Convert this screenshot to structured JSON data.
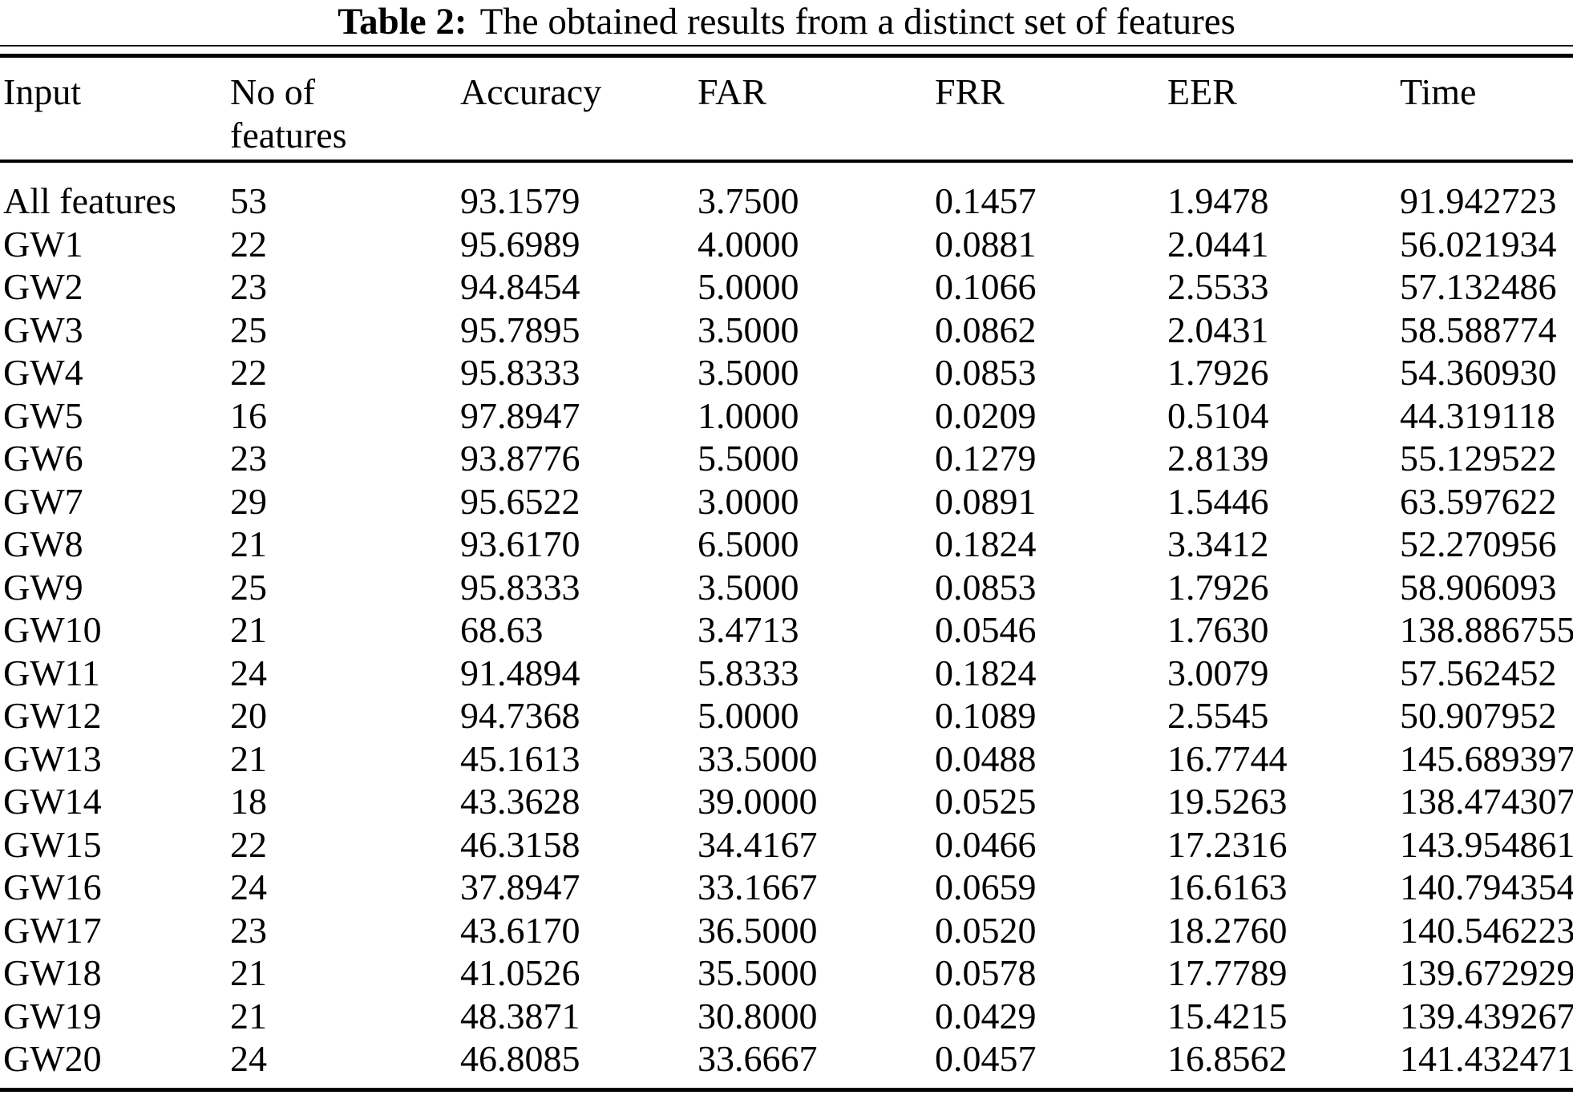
{
  "caption": {
    "label": "Table 2:",
    "text": "The obtained results from a distinct set of features"
  },
  "table": {
    "headers": [
      "Input",
      "No of\nfeatures",
      "Accuracy",
      "FAR",
      "FRR",
      "EER",
      "Time"
    ],
    "rows": [
      [
        "All features",
        "53",
        "93.1579",
        "3.7500",
        "0.1457",
        "1.9478",
        "91.942723"
      ],
      [
        "GW1",
        "22",
        "95.6989",
        "4.0000",
        "0.0881",
        "2.0441",
        "56.021934"
      ],
      [
        "GW2",
        "23",
        "94.8454",
        "5.0000",
        "0.1066",
        "2.5533",
        "57.132486"
      ],
      [
        "GW3",
        "25",
        "95.7895",
        "3.5000",
        "0.0862",
        "2.0431",
        "58.588774"
      ],
      [
        "GW4",
        "22",
        "95.8333",
        "3.5000",
        "0.0853",
        "1.7926",
        "54.360930"
      ],
      [
        "GW5",
        "16",
        "97.8947",
        "1.0000",
        "0.0209",
        "0.5104",
        "44.319118"
      ],
      [
        "GW6",
        "23",
        "93.8776",
        "5.5000",
        "0.1279",
        "2.8139",
        "55.129522"
      ],
      [
        "GW7",
        "29",
        "95.6522",
        "3.0000",
        "0.0891",
        "1.5446",
        "63.597622"
      ],
      [
        "GW8",
        "21",
        "93.6170",
        "6.5000",
        "0.1824",
        "3.3412",
        "52.270956"
      ],
      [
        "GW9",
        "25",
        "95.8333",
        "3.5000",
        "0.0853",
        "1.7926",
        "58.906093"
      ],
      [
        "GW10",
        "21",
        "68.63",
        "3.4713",
        "0.0546",
        "1.7630",
        "138.886755"
      ],
      [
        "GW11",
        "24",
        "91.4894",
        "5.8333",
        "0.1824",
        "3.0079",
        "57.562452"
      ],
      [
        "GW12",
        "20",
        "94.7368",
        "5.0000",
        "0.1089",
        "2.5545",
        "50.907952"
      ],
      [
        "GW13",
        "21",
        "45.1613",
        "33.5000",
        "0.0488",
        "16.7744",
        "145.689397"
      ],
      [
        "GW14",
        "18",
        "43.3628",
        "39.0000",
        "0.0525",
        "19.5263",
        "138.474307"
      ],
      [
        "GW15",
        "22",
        "46.3158",
        "34.4167",
        "0.0466",
        "17.2316",
        "143.954861"
      ],
      [
        "GW16",
        "24",
        "37.8947",
        "33.1667",
        "0.0659",
        "16.6163",
        "140.794354"
      ],
      [
        "GW17",
        "23",
        "43.6170",
        "36.5000",
        "0.0520",
        "18.2760",
        "140.546223"
      ],
      [
        "GW18",
        "21",
        "41.0526",
        "35.5000",
        "0.0578",
        "17.7789",
        "139.672929"
      ],
      [
        "GW19",
        "21",
        "48.3871",
        "30.8000",
        "0.0429",
        "15.4215",
        "139.439267"
      ],
      [
        "GW20",
        "24",
        "46.8085",
        "33.6667",
        "0.0457",
        "16.8562",
        "141.432471"
      ]
    ]
  }
}
